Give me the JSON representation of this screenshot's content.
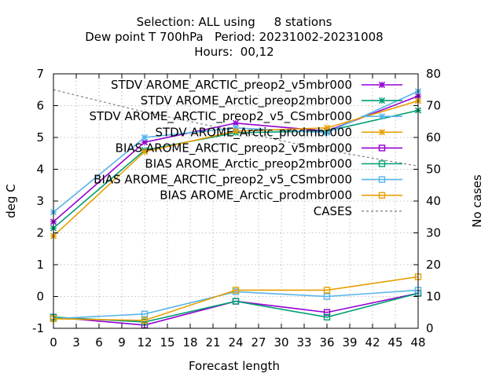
{
  "chart_data": {
    "type": "line",
    "title_lines": [
      "Selection: ALL using     8 stations",
      "Dew point T 700hPa   Period: 20231002-20231008",
      "Hours:  00,12"
    ],
    "xlabel": "Forecast length",
    "ylabel": "deg C",
    "y2label": "No cases",
    "xlim": [
      0,
      48
    ],
    "ylim": [
      -1,
      7
    ],
    "y2lim": [
      0,
      80
    ],
    "x_ticks": [
      "0",
      "3",
      "6",
      "9",
      "12",
      "15",
      "18",
      "21",
      "24",
      "27",
      "30",
      "33",
      "36",
      "39",
      "42",
      "45",
      "48"
    ],
    "y_ticks": [
      "-1",
      "0",
      "1",
      "2",
      "3",
      "4",
      "5",
      "6",
      "7"
    ],
    "y2_ticks": [
      "0",
      "10",
      "20",
      "30",
      "40",
      "50",
      "60",
      "70",
      "80"
    ],
    "grid": true,
    "legend_position": "top-right",
    "x": [
      0,
      12,
      24,
      36,
      48
    ],
    "series": [
      {
        "name": "STDV AROME_ARCTIC_preop2_v5mbr000",
        "color": "#9400d3",
        "marker": "x",
        "axis": "y",
        "values": [
          2.35,
          4.85,
          5.45,
          5.2,
          6.3
        ]
      },
      {
        "name": "STDV AROME_Arctic_preop2mbr000",
        "color": "#009e73",
        "marker": "x",
        "axis": "y",
        "values": [
          2.15,
          4.6,
          5.15,
          5.2,
          5.85
        ]
      },
      {
        "name": "STDV AROME_ARCTIC_preop2_v5_CSmbr000",
        "color": "#56b4e9",
        "marker": "x",
        "axis": "y",
        "values": [
          2.65,
          5.0,
          5.3,
          5.15,
          6.45
        ]
      },
      {
        "name": "STDV AROME_Arctic_prodmbr000",
        "color": "#e69f00",
        "marker": "x",
        "axis": "y",
        "values": [
          1.9,
          4.55,
          5.2,
          5.3,
          6.15
        ]
      },
      {
        "name": "BIAS AROME_ARCTIC_preop2_v5mbr000",
        "color": "#9400d3",
        "marker": "square",
        "axis": "y",
        "values": [
          -0.65,
          -0.9,
          -0.15,
          -0.5,
          0.1
        ]
      },
      {
        "name": "BIAS AROME_Arctic_preop2mbr000",
        "color": "#009e73",
        "marker": "square",
        "axis": "y",
        "values": [
          -0.65,
          -0.8,
          -0.15,
          -0.65,
          0.1
        ]
      },
      {
        "name": "BIAS AROME_ARCTIC_preop2_v5_CSmbr000",
        "color": "#56b4e9",
        "marker": "square",
        "axis": "y",
        "values": [
          -0.7,
          -0.55,
          0.15,
          0.0,
          0.2
        ]
      },
      {
        "name": "BIAS AROME_Arctic_prodmbr000",
        "color": "#e69f00",
        "marker": "square",
        "axis": "y",
        "values": [
          -0.7,
          -0.75,
          0.2,
          0.2,
          0.62
        ]
      },
      {
        "name": "CASES",
        "color": "#888888",
        "marker": "none",
        "dashed": true,
        "axis": "y2",
        "values": [
          75,
          68,
          62,
          56,
          51
        ]
      }
    ]
  }
}
